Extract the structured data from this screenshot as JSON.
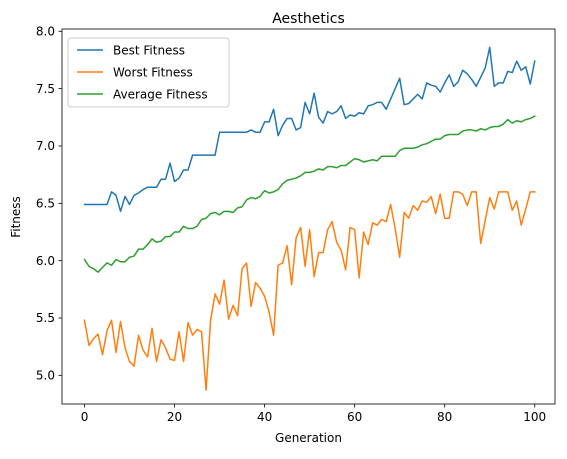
{
  "chart_data": {
    "type": "line",
    "title": "Aesthetics",
    "xlabel": "Generation",
    "ylabel": "Fitness",
    "xlim": [
      -5,
      104.5
    ],
    "ylim": [
      4.75,
      8.02
    ],
    "xticks": [
      0,
      20,
      40,
      60,
      80,
      100
    ],
    "yticks": [
      5.0,
      5.5,
      6.0,
      6.5,
      7.0,
      7.5,
      8.0
    ],
    "xtick_labels": [
      "0",
      "20",
      "40",
      "60",
      "80",
      "100"
    ],
    "ytick_labels": [
      "5.0",
      "5.5",
      "6.0",
      "6.5",
      "7.0",
      "7.5",
      "8.0"
    ],
    "grid": false,
    "legend_position": "upper-left",
    "series": [
      {
        "name": "Best Fitness",
        "color": "#1f77b4",
        "values": [
          6.49,
          6.49,
          6.49,
          6.49,
          6.49,
          6.49,
          6.6,
          6.57,
          6.43,
          6.56,
          6.49,
          6.57,
          6.59,
          6.62,
          6.64,
          6.64,
          6.64,
          6.71,
          6.71,
          6.85,
          6.69,
          6.72,
          6.79,
          6.79,
          6.92,
          6.92,
          6.92,
          6.92,
          6.92,
          6.92,
          7.12,
          7.12,
          7.12,
          7.12,
          7.12,
          7.12,
          7.12,
          7.14,
          7.12,
          7.12,
          7.21,
          7.21,
          7.32,
          7.09,
          7.18,
          7.24,
          7.24,
          7.14,
          7.16,
          7.38,
          7.28,
          7.46,
          7.25,
          7.2,
          7.3,
          7.28,
          7.3,
          7.35,
          7.24,
          7.27,
          7.26,
          7.29,
          7.28,
          7.35,
          7.36,
          7.38,
          7.38,
          7.32,
          7.41,
          7.5,
          7.59,
          7.36,
          7.37,
          7.41,
          7.45,
          7.41,
          7.55,
          7.53,
          7.52,
          7.47,
          7.55,
          7.62,
          7.52,
          7.56,
          7.66,
          7.63,
          7.58,
          7.52,
          7.6,
          7.68,
          7.86,
          7.52,
          7.55,
          7.55,
          7.65,
          7.64,
          7.74,
          7.66,
          7.69,
          7.54,
          7.74
        ]
      },
      {
        "name": "Worst Fitness",
        "color": "#ff7f0e",
        "values": [
          5.48,
          5.26,
          5.32,
          5.36,
          5.18,
          5.39,
          5.48,
          5.2,
          5.47,
          5.24,
          5.12,
          5.08,
          5.35,
          5.22,
          5.16,
          5.41,
          5.12,
          5.31,
          5.24,
          5.14,
          5.13,
          5.38,
          5.12,
          5.46,
          5.35,
          5.4,
          5.38,
          4.87,
          5.48,
          5.71,
          5.62,
          5.83,
          5.49,
          5.61,
          5.52,
          5.93,
          5.98,
          5.6,
          5.81,
          5.76,
          5.69,
          5.55,
          5.35,
          5.96,
          5.98,
          6.13,
          5.79,
          6.2,
          6.29,
          5.95,
          6.27,
          5.86,
          6.07,
          6.07,
          6.27,
          6.34,
          6.16,
          6.09,
          5.92,
          6.29,
          6.27,
          5.85,
          6.25,
          6.14,
          6.33,
          6.31,
          6.36,
          6.34,
          6.49,
          6.28,
          6.03,
          6.42,
          6.37,
          6.48,
          6.44,
          6.52,
          6.51,
          6.56,
          6.41,
          6.58,
          6.37,
          6.37,
          6.6,
          6.6,
          6.58,
          6.48,
          6.6,
          6.6,
          6.15,
          6.35,
          6.55,
          6.45,
          6.6,
          6.6,
          6.6,
          6.44,
          6.52,
          6.31,
          6.45,
          6.6,
          6.6
        ]
      },
      {
        "name": "Average Fitness",
        "color": "#2ca02c",
        "values": [
          6.01,
          5.95,
          5.93,
          5.9,
          5.94,
          5.98,
          5.96,
          6.01,
          5.99,
          5.99,
          6.03,
          6.04,
          6.1,
          6.1,
          6.14,
          6.19,
          6.16,
          6.17,
          6.21,
          6.21,
          6.25,
          6.25,
          6.3,
          6.28,
          6.28,
          6.3,
          6.36,
          6.37,
          6.41,
          6.42,
          6.4,
          6.43,
          6.43,
          6.42,
          6.46,
          6.47,
          6.53,
          6.55,
          6.54,
          6.56,
          6.61,
          6.59,
          6.6,
          6.62,
          6.67,
          6.7,
          6.71,
          6.72,
          6.74,
          6.77,
          6.77,
          6.78,
          6.8,
          6.79,
          6.82,
          6.82,
          6.81,
          6.83,
          6.83,
          6.86,
          6.89,
          6.88,
          6.86,
          6.87,
          6.88,
          6.87,
          6.91,
          6.91,
          6.91,
          6.91,
          6.96,
          6.98,
          6.98,
          6.98,
          6.99,
          7.01,
          7.02,
          7.04,
          7.06,
          7.06,
          7.09,
          7.1,
          7.1,
          7.1,
          7.13,
          7.14,
          7.14,
          7.13,
          7.15,
          7.14,
          7.16,
          7.17,
          7.17,
          7.19,
          7.23,
          7.2,
          7.22,
          7.21,
          7.23,
          7.24,
          7.26
        ]
      }
    ]
  }
}
